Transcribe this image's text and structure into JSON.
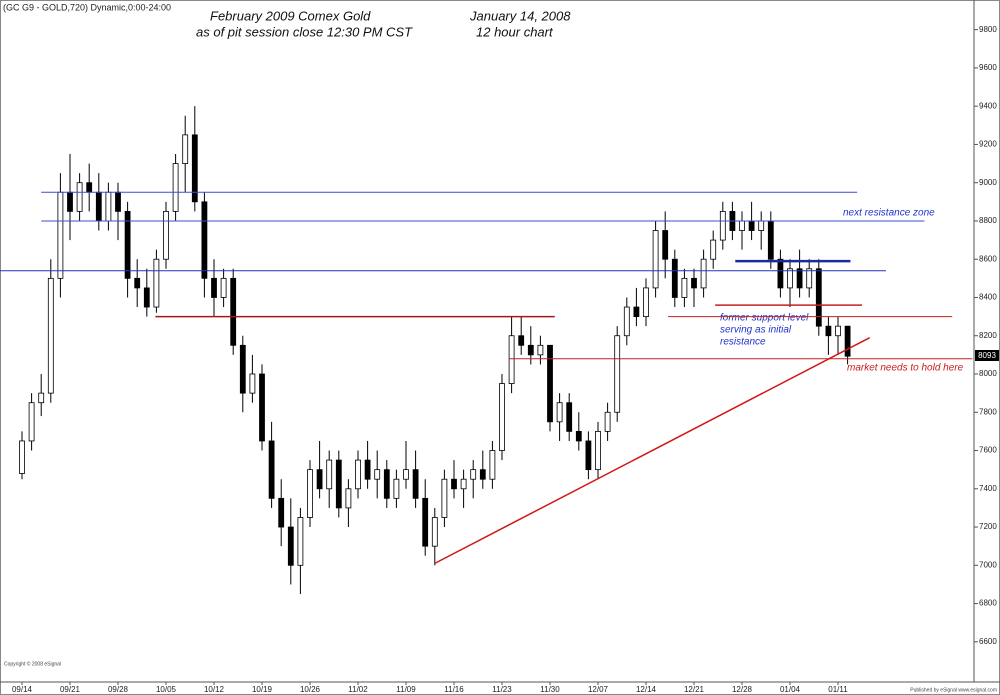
{
  "chart_data": {
    "type": "candlestick",
    "header": "(GC G9 - GOLD,720) Dynamic,0:00-24:00",
    "title": "February 2009 Comex Gold",
    "date": "January 14, 2008",
    "subtitle": "as of pit session close 12:30 PM CST",
    "interval": "12 hour chart",
    "annotations": [
      "next resistance zone",
      "former support level",
      "serving as initial",
      "resistance",
      "market needs to hold here"
    ],
    "last_price": "8093",
    "copyright": "Copyright © 2008 eSignal",
    "publisher": "Published by eSignal www.esignal.com",
    "up_color": "#ffffff",
    "down_color": "#000000",
    "ylim": [
      6390,
      9955
    ],
    "yticks": [
      6600,
      6800,
      7000,
      7200,
      7400,
      7600,
      7800,
      8000,
      8200,
      8400,
      8600,
      8800,
      9000,
      9200,
      9400,
      9600,
      9800
    ],
    "categories": [
      "09/14",
      null,
      null,
      null,
      null,
      "09/21",
      null,
      null,
      null,
      null,
      "09/28",
      null,
      null,
      null,
      null,
      "10/05",
      null,
      null,
      null,
      null,
      "10/12",
      null,
      null,
      null,
      null,
      "10/19",
      null,
      null,
      null,
      null,
      "10/26",
      null,
      null,
      null,
      null,
      "11/02",
      null,
      null,
      null,
      null,
      "11/09",
      null,
      null,
      null,
      null,
      "11/16",
      null,
      null,
      null,
      null,
      "11/23",
      null,
      null,
      null,
      null,
      "11/30",
      null,
      null,
      null,
      null,
      "12/07",
      null,
      null,
      null,
      null,
      "12/14",
      null,
      null,
      null,
      null,
      "12/21",
      null,
      null,
      null,
      null,
      "12/28",
      null,
      null,
      null,
      null,
      "01/04",
      null,
      null,
      null,
      null,
      "01/11",
      null
    ],
    "ohlc": [
      [
        7480,
        7700,
        7450,
        7650
      ],
      [
        7650,
        7900,
        7600,
        7850
      ],
      [
        7850,
        8000,
        7780,
        7900
      ],
      [
        7900,
        8600,
        7850,
        8500
      ],
      [
        8500,
        9050,
        8400,
        8950
      ],
      [
        8950,
        9150,
        8700,
        8850
      ],
      [
        8850,
        9050,
        8800,
        9000
      ],
      [
        9000,
        9100,
        8850,
        8950
      ],
      [
        8950,
        9050,
        8750,
        8800
      ],
      [
        8800,
        9000,
        8750,
        8950
      ],
      [
        8950,
        9000,
        8700,
        8850
      ],
      [
        8850,
        8900,
        8400,
        8500
      ],
      [
        8500,
        8600,
        8350,
        8450
      ],
      [
        8450,
        8550,
        8300,
        8350
      ],
      [
        8350,
        8650,
        8320,
        8600
      ],
      [
        8600,
        8900,
        8550,
        8850
      ],
      [
        8850,
        9150,
        8800,
        9100
      ],
      [
        9100,
        9350,
        8950,
        9250
      ],
      [
        9250,
        9400,
        8850,
        8900
      ],
      [
        8900,
        8950,
        8400,
        8500
      ],
      [
        8500,
        8600,
        8300,
        8400
      ],
      [
        8400,
        8550,
        8350,
        8500
      ],
      [
        8500,
        8550,
        8100,
        8150
      ],
      [
        8150,
        8200,
        7800,
        7900
      ],
      [
        7900,
        8100,
        7850,
        8000
      ],
      [
        8000,
        8050,
        7600,
        7650
      ],
      [
        7650,
        7750,
        7300,
        7350
      ],
      [
        7350,
        7450,
        7100,
        7200
      ],
      [
        7200,
        7350,
        6900,
        7000
      ],
      [
        7000,
        7300,
        6850,
        7250
      ],
      [
        7250,
        7550,
        7200,
        7500
      ],
      [
        7500,
        7650,
        7350,
        7400
      ],
      [
        7400,
        7600,
        7300,
        7550
      ],
      [
        7550,
        7600,
        7250,
        7300
      ],
      [
        7300,
        7450,
        7200,
        7400
      ],
      [
        7400,
        7600,
        7350,
        7550
      ],
      [
        7550,
        7650,
        7400,
        7450
      ],
      [
        7450,
        7600,
        7350,
        7500
      ],
      [
        7500,
        7550,
        7300,
        7350
      ],
      [
        7350,
        7500,
        7300,
        7450
      ],
      [
        7450,
        7650,
        7400,
        7500
      ],
      [
        7500,
        7600,
        7300,
        7350
      ],
      [
        7350,
        7450,
        7050,
        7100
      ],
      [
        7100,
        7300,
        7000,
        7250
      ],
      [
        7250,
        7500,
        7200,
        7450
      ],
      [
        7450,
        7550,
        7350,
        7400
      ],
      [
        7400,
        7500,
        7300,
        7450
      ],
      [
        7450,
        7550,
        7350,
        7500
      ],
      [
        7500,
        7600,
        7400,
        7450
      ],
      [
        7450,
        7650,
        7400,
        7600
      ],
      [
        7600,
        8000,
        7550,
        7950
      ],
      [
        7950,
        8300,
        7900,
        8200
      ],
      [
        8200,
        8300,
        8100,
        8150
      ],
      [
        8150,
        8250,
        8050,
        8100
      ],
      [
        8100,
        8200,
        8050,
        8150
      ],
      [
        8150,
        8150,
        7700,
        7750
      ],
      [
        7750,
        7900,
        7650,
        7850
      ],
      [
        7850,
        7900,
        7650,
        7700
      ],
      [
        7700,
        7800,
        7600,
        7650
      ],
      [
        7650,
        7700,
        7450,
        7500
      ],
      [
        7500,
        7750,
        7450,
        7700
      ],
      [
        7700,
        7850,
        7650,
        7800
      ],
      [
        7800,
        8250,
        7750,
        8200
      ],
      [
        8200,
        8400,
        8150,
        8350
      ],
      [
        8350,
        8450,
        8250,
        8300
      ],
      [
        8300,
        8500,
        8250,
        8450
      ],
      [
        8450,
        8800,
        8400,
        8750
      ],
      [
        8750,
        8850,
        8500,
        8600
      ],
      [
        8600,
        8650,
        8350,
        8400
      ],
      [
        8400,
        8550,
        8350,
        8500
      ],
      [
        8500,
        8550,
        8350,
        8450
      ],
      [
        8450,
        8650,
        8400,
        8600
      ],
      [
        8600,
        8750,
        8550,
        8700
      ],
      [
        8700,
        8900,
        8650,
        8850
      ],
      [
        8850,
        8900,
        8700,
        8750
      ],
      [
        8750,
        8850,
        8650,
        8800
      ],
      [
        8800,
        8900,
        8700,
        8750
      ],
      [
        8750,
        8850,
        8650,
        8800
      ],
      [
        8800,
        8850,
        8550,
        8600
      ],
      [
        8600,
        8650,
        8400,
        8450
      ],
      [
        8450,
        8600,
        8350,
        8550
      ],
      [
        8550,
        8650,
        8400,
        8450
      ],
      [
        8450,
        8600,
        8400,
        8550
      ],
      [
        8550,
        8600,
        8200,
        8250
      ],
      [
        8250,
        8300,
        8100,
        8200
      ],
      [
        8200,
        8300,
        8100,
        8250
      ],
      [
        8250,
        8250,
        8050,
        8093
      ]
    ],
    "levels": [
      {
        "value": 8950,
        "from": 2,
        "to": 87,
        "color": "#3a4fd6",
        "width": 1
      },
      {
        "value": 8800,
        "from": 2,
        "to": 94,
        "color": "#3a4fd6",
        "width": 1
      },
      {
        "value": 8540,
        "from": -2.3,
        "to": 90,
        "color": "#2233bb",
        "width": 1
      },
      {
        "value": 8590,
        "from": 74.3,
        "to": 86.3,
        "color": "#1a2aa0",
        "width": 2.5
      },
      {
        "value": 8300,
        "from": 13.9,
        "to": 55.5,
        "color": "#a01818",
        "width": 1.5
      },
      {
        "value": 8080,
        "from": 50.8,
        "to": 99,
        "color": "#c02020",
        "width": 1
      },
      {
        "value": 8360,
        "from": 72.2,
        "to": 87.5,
        "color": "#c02020",
        "width": 1.5
      },
      {
        "value": 8300,
        "from": 67.3,
        "to": 96.9,
        "color": "#c02020",
        "width": 1
      }
    ],
    "trendline": {
      "points": [
        [
          43,
          7010
        ],
        [
          88.3,
          8190
        ]
      ],
      "color": "#d01818"
    }
  }
}
